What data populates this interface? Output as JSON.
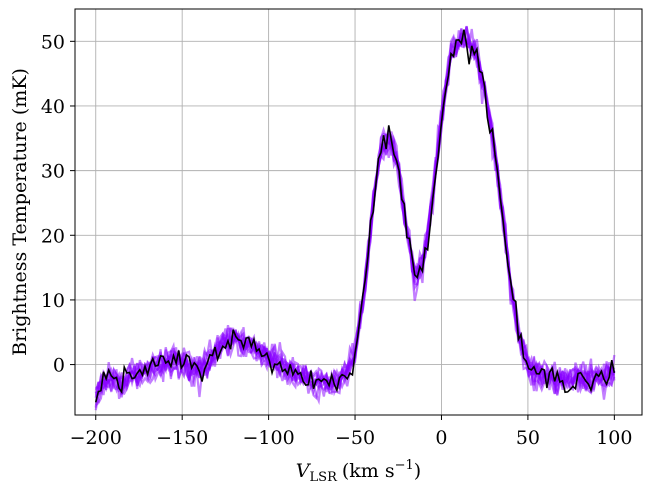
{
  "chart_data": {
    "type": "line",
    "title": "",
    "xlabel": "V",
    "xlabel_sub": "LSR",
    "xlabel_unit": "(km s",
    "xlabel_sup": "−1",
    "xlabel_close": ")",
    "ylabel": "Brightness Temperature (mK)",
    "xlim": [
      -212,
      116
    ],
    "ylim": [
      -7.8,
      55
    ],
    "xticks": [
      -200,
      -150,
      -100,
      -50,
      0,
      50,
      100
    ],
    "xtick_labels": [
      "−200",
      "−150",
      "−100",
      "−50",
      "0",
      "50",
      "100"
    ],
    "yticks": [
      0,
      10,
      20,
      30,
      40,
      50
    ],
    "ytick_labels": [
      "0",
      "10",
      "20",
      "30",
      "40",
      "50"
    ],
    "grid": true,
    "legend": "none",
    "series": [
      {
        "role": "posterior-samples",
        "color": "#8800ff",
        "opacity": 0.5,
        "samples": 10,
        "description_of_shape": "noisy spectra overlapping the black observed line"
      },
      {
        "role": "observed",
        "color": "#000000",
        "x": [
          -200,
          -195,
          -190,
          -185,
          -180,
          -175,
          -170,
          -165,
          -160,
          -155,
          -150,
          -145,
          -140,
          -135,
          -130,
          -125,
          -120,
          -115,
          -110,
          -105,
          -100,
          -95,
          -90,
          -85,
          -80,
          -75,
          -70,
          -65,
          -60,
          -55,
          -50,
          -45,
          -40,
          -35,
          -30,
          -25,
          -20,
          -15,
          -10,
          -5,
          0,
          5,
          10,
          15,
          20,
          25,
          30,
          35,
          40,
          45,
          50,
          55,
          60,
          65,
          70,
          75,
          80,
          85,
          90,
          95,
          100
        ],
        "y": [
          -4.8,
          -2.5,
          -2.0,
          -2.8,
          -1.5,
          -1.8,
          -0.8,
          -0.5,
          0.3,
          0.8,
          0.5,
          -0.5,
          -0.6,
          0.5,
          2.0,
          3.8,
          4.0,
          3.2,
          2.8,
          2.0,
          1.0,
          0.3,
          -0.8,
          -1.3,
          -1.8,
          -2.2,
          -2.5,
          -2.8,
          -2.5,
          -1.5,
          2.0,
          10.5,
          24.0,
          33.5,
          35.3,
          31.0,
          20.5,
          12.8,
          16.5,
          26.0,
          38.0,
          47.5,
          50.0,
          50.3,
          48.0,
          42.5,
          34.5,
          24.0,
          12.5,
          4.0,
          -0.5,
          -1.5,
          -2.0,
          -2.2,
          -2.3,
          -2.3,
          -2.0,
          -2.2,
          -1.8,
          -2.0,
          -1.0
        ]
      }
    ]
  }
}
